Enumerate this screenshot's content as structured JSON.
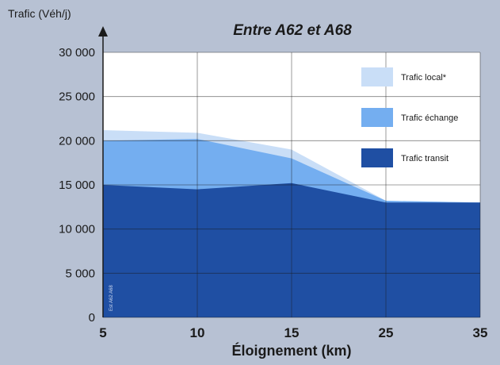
{
  "chart_data": {
    "type": "area",
    "title": "Entre A62 et A68",
    "ylabel": "Trafic (Véh/j)",
    "xlabel": "Éloignement (km)",
    "categories": [
      "5",
      "10",
      "15",
      "25",
      "35"
    ],
    "ylim": [
      0,
      30000
    ],
    "yticks": [
      "0",
      "5 000",
      "10 000",
      "15 000",
      "20 000",
      "25 000",
      "30 000"
    ],
    "stacked": true,
    "series": [
      {
        "name": "Trafic transit",
        "color": "#1f4fa3",
        "values": [
          15000,
          14500,
          15200,
          13000,
          13000
        ]
      },
      {
        "name": "Trafic échange",
        "color": "#74aef0",
        "values": [
          5000,
          5700,
          2800,
          200,
          0
        ]
      },
      {
        "name": "Trafic local*",
        "color": "#c9def7",
        "values": [
          1200,
          700,
          1000,
          0,
          0
        ]
      }
    ],
    "legend_position": "top-right",
    "grid": true,
    "note": "Est A62 A68"
  }
}
